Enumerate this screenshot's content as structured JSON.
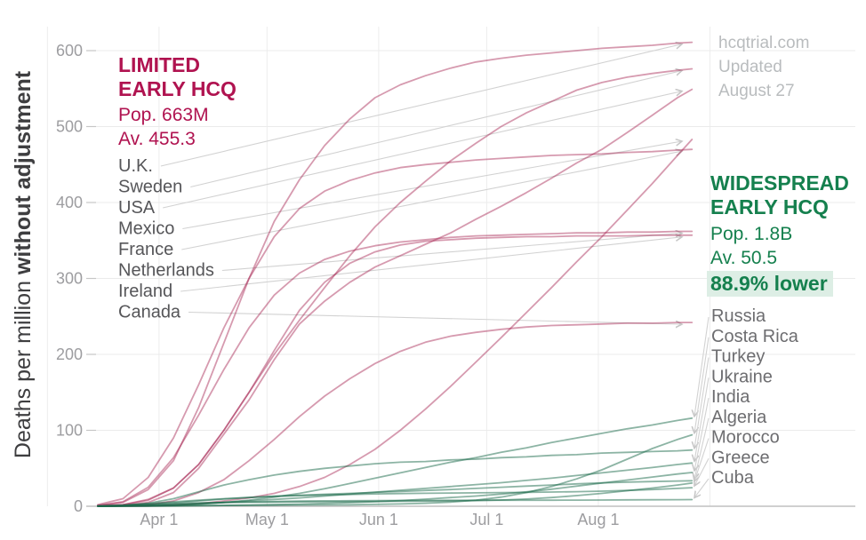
{
  "page": {
    "background": "#ffffff"
  },
  "watermark": {
    "line1": "hcqtrial.com",
    "line2": "Updated",
    "line3": "August 27"
  },
  "y_axis": {
    "title_normal": "Deaths per million ",
    "title_bold": "without adjustment",
    "ticks": [
      600,
      500,
      400,
      300,
      200,
      100,
      0
    ]
  },
  "x_axis": {
    "ticks": [
      "Apr 1",
      "May 1",
      "Jun 1",
      "Jul 1",
      "Aug 1"
    ]
  },
  "annotations": {
    "limited": {
      "line1": "LIMITED",
      "line2": "EARLY HCQ",
      "line3": "Pop. 663M",
      "line4": "Av. 455.3",
      "color": "#b01350"
    },
    "widespread": {
      "line1": "WIDESPREAD",
      "line2": "EARLY HCQ",
      "line3": "Pop. 1.8B",
      "line4": "Av. 50.5",
      "line5": "88.9% lower",
      "color": "#15804e",
      "highlight_bg": "#ddeee5"
    }
  },
  "chart_data": {
    "type": "line",
    "title": "",
    "xlabel": "",
    "ylabel": "Deaths per million without adjustment",
    "ylim": [
      0,
      620
    ],
    "grid": true,
    "x_start_date": "Mar 15",
    "x_end_date": "Aug 27",
    "sample_days": [
      0,
      7,
      14,
      21,
      28,
      35,
      42,
      49,
      56,
      63,
      70,
      77,
      84,
      91,
      98,
      105,
      112,
      119,
      126,
      133,
      140,
      147,
      154,
      161,
      165
    ],
    "groups": [
      {
        "name": "limited-early-hcq",
        "line_color": "rgba(164,32,78,0.45)",
        "label_color": "#565659",
        "series": [
          {
            "name": "U.K.",
            "end_value": 611,
            "values": [
              1,
              5,
              22,
              60,
              130,
              215,
              300,
              375,
              430,
              475,
              510,
              538,
              555,
              567,
              577,
              585,
              590,
              594,
              597,
              600,
              603,
              605,
              607,
              610,
              611
            ]
          },
          {
            "name": "Sweden",
            "end_value": 576,
            "values": [
              0.5,
              2,
              8,
              24,
              55,
              100,
              150,
              200,
              245,
              288,
              330,
              368,
              400,
              428,
              455,
              478,
              500,
              518,
              533,
              548,
              558,
              565,
              570,
              574,
              576
            ]
          },
          {
            "name": "USA",
            "end_value": 549,
            "values": [
              0.2,
              1,
              5,
              18,
              50,
              95,
              140,
              193,
              240,
              270,
              295,
              315,
              330,
              345,
              360,
              378,
              395,
              413,
              432,
              452,
              470,
              492,
              515,
              538,
              549
            ]
          },
          {
            "name": "Mexico",
            "end_value": 483,
            "values": [
              0,
              0.1,
              0.4,
              1.5,
              3.5,
              7,
              11,
              17,
              26,
              38,
              55,
              75,
              100,
              128,
              158,
              190,
              222,
              255,
              288,
              322,
              355,
              390,
              425,
              462,
              483
            ]
          },
          {
            "name": "France",
            "end_value": 470,
            "values": [
              2,
              10,
              38,
              90,
              160,
              235,
              300,
              355,
              392,
              415,
              429,
              439,
              446,
              450,
              453,
              456,
              458,
              460,
              462,
              463,
              464,
              466,
              467,
              469,
              470
            ]
          },
          {
            "name": "Netherlands",
            "end_value": 362,
            "values": [
              1,
              6,
              25,
              64,
              120,
              180,
              235,
              278,
              307,
              325,
              336,
              343,
              348,
              351,
              354,
              356,
              357,
              358,
              359,
              360,
              360,
              361,
              361,
              362,
              362
            ]
          },
          {
            "name": "Ireland",
            "end_value": 357,
            "values": [
              0.4,
              2,
              9,
              24,
              55,
              100,
              150,
              205,
              258,
              295,
              320,
              335,
              344,
              349,
              351,
              353,
              354,
              355,
              355,
              356,
              356,
              356,
              357,
              357,
              357
            ]
          },
          {
            "name": "Canada",
            "end_value": 242,
            "values": [
              0.1,
              0.5,
              2,
              7,
              18,
              35,
              60,
              88,
              118,
              145,
              168,
              188,
              204,
              216,
              224,
              229,
              233,
              236,
              238,
              239,
              240,
              241,
              241,
              242,
              242
            ]
          }
        ]
      },
      {
        "name": "widespread-early-hcq",
        "line_color": "rgba(26,105,73,0.5)",
        "label_color": "#6d6d70",
        "series": [
          {
            "name": "Russia",
            "end_value": 116,
            "values": [
              0,
              0.1,
              0.3,
              1,
              2.5,
              5,
              8,
              12,
              17,
              23,
              30,
              37,
              44,
              51,
              58,
              64,
              71,
              77,
              84,
              90,
              96,
              102,
              107,
              113,
              116
            ]
          },
          {
            "name": "Costa Rica",
            "end_value": 94,
            "values": [
              0.2,
              0.4,
              0.6,
              0.8,
              1,
              1.2,
              1.3,
              1.4,
              1.6,
              1.8,
              2,
              2.4,
              3,
              4,
              5.5,
              8,
              12,
              18,
              26,
              36,
              48,
              62,
              76,
              88,
              94
            ]
          },
          {
            "name": "Turkey",
            "end_value": 74,
            "values": [
              0.1,
              1,
              4,
              10,
              19,
              28,
              35,
              41,
              46,
              50,
              53,
              56,
              58,
              59,
              61,
              62,
              64,
              65,
              67,
              68,
              70,
              71,
              72,
              73,
              74
            ]
          },
          {
            "name": "Ukraine",
            "end_value": 57,
            "values": [
              0,
              0.1,
              0.5,
              1.5,
              3,
              5,
              7,
              9,
              11,
              13.5,
              16,
              18.5,
              21,
              23.5,
              26,
              28.5,
              31,
              34,
              37,
              40.5,
              44,
              47.5,
              51,
              55,
              57
            ]
          },
          {
            "name": "India",
            "end_value": 44.5,
            "values": [
              0,
              0.1,
              0.2,
              0.3,
              0.6,
              1,
              1.5,
              2.1,
              2.8,
              3.7,
              4.8,
              6,
              7.5,
              9.3,
              11.5,
              13.5,
              16,
              19,
              22.5,
              26.5,
              30.5,
              34.5,
              38.5,
              42.5,
              44.5
            ]
          },
          {
            "name": "Algeria",
            "end_value": 33.6,
            "values": [
              0.3,
              1,
              2.5,
              4.5,
              7,
              9.5,
              11.5,
              13.2,
              14.5,
              15.8,
              17,
              18.2,
              19.5,
              20.8,
              22,
              23.5,
              25,
              26.5,
              28,
              29.5,
              30.8,
              31.8,
              32.5,
              33.2,
              33.6
            ]
          },
          {
            "name": "Morocco",
            "end_value": 30.5,
            "values": [
              0.1,
              0.7,
              2,
              3.5,
              4.4,
              5,
              5.3,
              5.5,
              5.7,
              5.9,
              6.1,
              6.3,
              6.5,
              6.7,
              7,
              7.5,
              8.2,
              9.5,
              11.5,
              14,
              17,
              20.5,
              24,
              28,
              30.5
            ]
          },
          {
            "name": "Greece",
            "end_value": 24.5,
            "values": [
              0.4,
              1.5,
              3.5,
              5.8,
              8,
              10,
              11.7,
              13,
              14,
              14.9,
              15.6,
              16.2,
              16.7,
              17.1,
              17.4,
              17.7,
              18,
              18.3,
              18.7,
              19.2,
              19.9,
              20.8,
              22,
              23.5,
              24.5
            ]
          },
          {
            "name": "Cuba",
            "end_value": 8.8,
            "values": [
              0.1,
              0.5,
              1.3,
              2.5,
              3.8,
              4.9,
              5.7,
              6.3,
              6.8,
              7.1,
              7.3,
              7.5,
              7.6,
              7.7,
              7.8,
              7.8,
              7.9,
              7.9,
              8,
              8.1,
              8.2,
              8.4,
              8.5,
              8.7,
              8.8
            ]
          }
        ]
      }
    ]
  }
}
